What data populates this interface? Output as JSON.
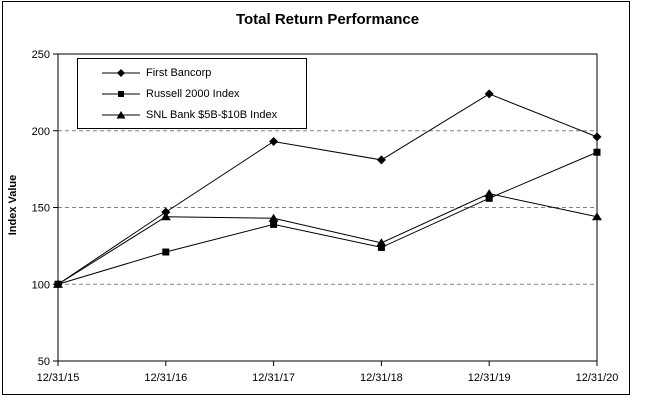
{
  "window": {
    "background": "#ffffff",
    "frame_border_color": "#000000"
  },
  "chart_data": {
    "type": "line",
    "title": "Total Return Performance",
    "xlabel": "",
    "ylabel": "Index Value",
    "ylim": [
      50,
      250
    ],
    "yticks": [
      50,
      100,
      150,
      200,
      250
    ],
    "gridline_values": [
      100,
      150,
      200
    ],
    "grid": "horizontal dashed gray lines at 100, 150, 200",
    "legend_position": "boxed, top-left inside plot area",
    "line_color": "#000000",
    "grid_color": "#808080",
    "text_color": "#000000",
    "categories": [
      "12/31/15",
      "12/31/16",
      "12/31/17",
      "12/31/18",
      "12/31/19",
      "12/31/20"
    ],
    "series": [
      {
        "name": "First Bancorp",
        "marker": "diamond",
        "color": "#000000",
        "values": [
          100,
          147,
          193,
          181,
          224,
          196
        ]
      },
      {
        "name": "Russell 2000 Index",
        "marker": "square",
        "color": "#000000",
        "values": [
          100,
          121,
          139,
          124,
          156,
          186
        ]
      },
      {
        "name": "SNL Bank $5B-$10B Index",
        "marker": "triangle",
        "color": "#000000",
        "values": [
          100,
          144,
          143,
          127,
          159,
          144
        ]
      }
    ]
  }
}
